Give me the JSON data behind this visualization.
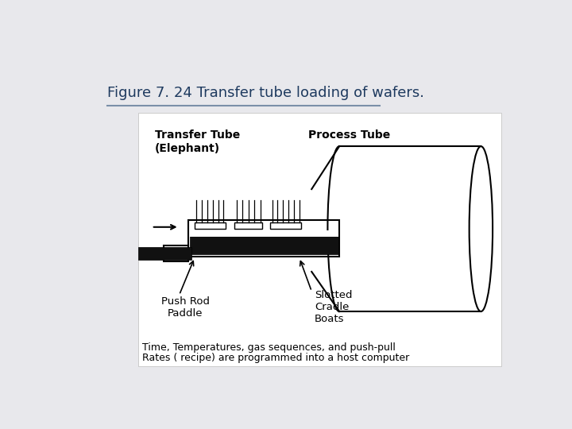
{
  "title": "Figure 7. 24 Transfer tube loading of wafers.",
  "title_color": "#1E3A5F",
  "title_fontsize": 13,
  "bg_color": "#E8E8EC",
  "box_bg": "#FFFFFF",
  "caption_line1": "Time, Temperatures, gas sequences, and push-pull",
  "caption_line2": "Rates ( recipe) are programmed into a host computer",
  "label_transfer": "Transfer Tube\n(Elephant)",
  "label_process": "Process Tube",
  "label_pushrod": "Push Rod\nPaddle",
  "label_slotted": "Slotted\nCradle\nBoats"
}
